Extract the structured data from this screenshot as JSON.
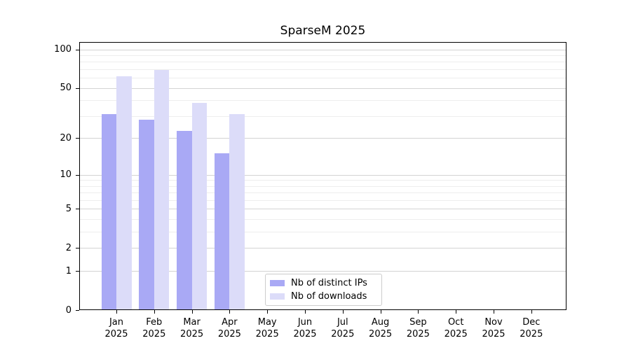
{
  "title": "SparseM 2025",
  "chart_data": {
    "type": "bar",
    "title": "SparseM 2025",
    "categories": [
      "Jan",
      "Feb",
      "Mar",
      "Apr",
      "May",
      "Jun",
      "Jul",
      "Aug",
      "Sep",
      "Oct",
      "Nov",
      "Dec"
    ],
    "xtick_year": "2025",
    "series": [
      {
        "name": "Nb of distinct IPs",
        "color": "#a9a9f5",
        "values": [
          31,
          28,
          23,
          15,
          0,
          0,
          0,
          0,
          0,
          0,
          0,
          0
        ]
      },
      {
        "name": "Nb of downloads",
        "color": "#dcdcf9",
        "values": [
          62,
          69,
          38,
          31,
          0,
          0,
          0,
          0,
          0,
          0,
          0,
          0
        ]
      }
    ],
    "xlabel": "",
    "ylabel": "",
    "yscale": "log1p",
    "ylim": [
      0,
      114.2
    ],
    "yticks": [
      0,
      1,
      2,
      5,
      10,
      20,
      50,
      100
    ],
    "yticks_minor": [
      3,
      4,
      6,
      7,
      8,
      9,
      30,
      40,
      60,
      70,
      80,
      90
    ],
    "grid": "horizontal",
    "legend_position": "lower-center"
  },
  "legend": {
    "items": [
      {
        "label": "Nb of distinct IPs",
        "color": "#a9a9f5"
      },
      {
        "label": "Nb of downloads",
        "color": "#dcdcf9"
      }
    ]
  }
}
